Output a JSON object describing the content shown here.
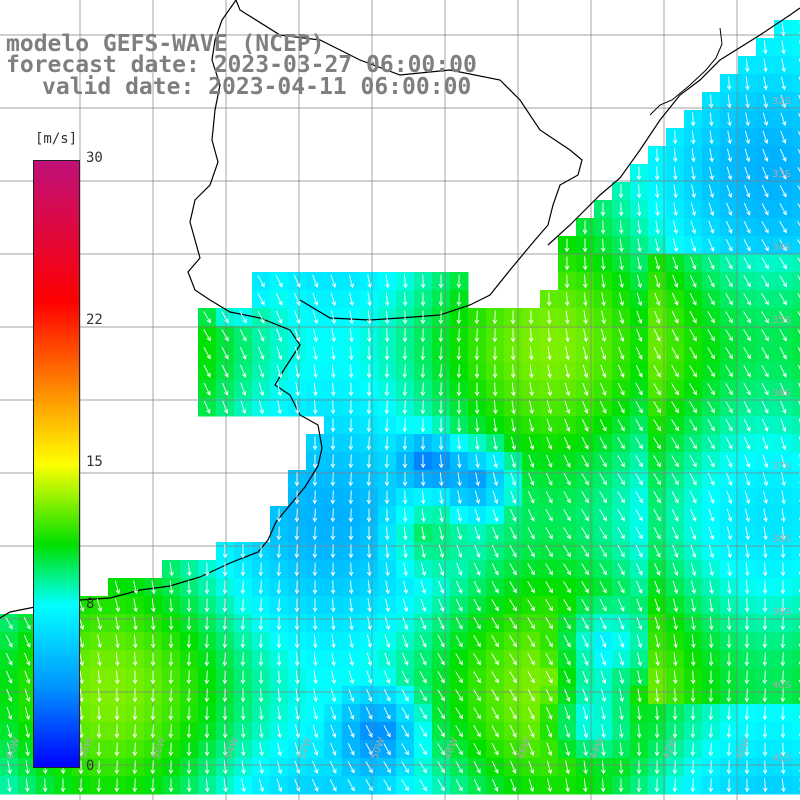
{
  "title": {
    "line1": "modelo GEFS-WAVE (NCEP)",
    "line2": "forecast date: 2023-03-27 06:00:00",
    "line3": "valid date: 2023-04-11 06:00:00"
  },
  "colorbar": {
    "unit": "[m/s]",
    "ticks": [
      "30",
      "22",
      "15",
      "8",
      "0"
    ],
    "tick_values": [
      30,
      22,
      15,
      8,
      0
    ],
    "range": [
      0,
      30
    ],
    "stops": [
      {
        "v": 0,
        "color": "#0000ff"
      },
      {
        "v": 4,
        "color": "#0096ff"
      },
      {
        "v": 8,
        "color": "#00ffff"
      },
      {
        "v": 11,
        "color": "#00e000"
      },
      {
        "v": 15,
        "color": "#ffff00"
      },
      {
        "v": 19,
        "color": "#ff8000"
      },
      {
        "v": 23,
        "color": "#ff0000"
      },
      {
        "v": 30,
        "color": "#c0107a"
      }
    ]
  },
  "map": {
    "longitude_labels": [
      "60W",
      "58W",
      "56W",
      "54W",
      "52W",
      "50W",
      "48W",
      "46W",
      "44W",
      "42W",
      "40W"
    ],
    "latitude_labels": [
      "32S",
      "33S",
      "34S",
      "35S",
      "36S",
      "37S",
      "38S",
      "39S",
      "40S",
      "41S"
    ],
    "colors": {
      "land": "#ffffff",
      "coast": "#000000",
      "grid": "#808080",
      "arrows": "#ffffff"
    }
  }
}
